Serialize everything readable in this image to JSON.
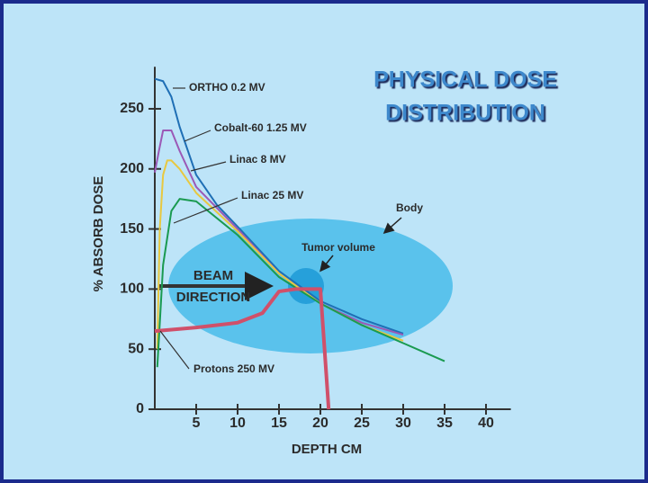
{
  "chart_data": {
    "type": "line",
    "title": [
      "PHYSICAL DOSE",
      "DISTRIBUTION"
    ],
    "x_label": "DEPTH CM",
    "y_label": "% ABSORB DOSE",
    "xlim": [
      0,
      43
    ],
    "ylim": [
      0,
      285
    ],
    "xticks": [
      5,
      10,
      15,
      20,
      25,
      30,
      35,
      40
    ],
    "yticks": [
      0,
      50,
      100,
      150,
      200,
      250
    ],
    "series": [
      {
        "name": "ORTHO  0.2 MV",
        "color": "#1f6fb5",
        "x": [
          0,
          1,
          2,
          3,
          5,
          7.5,
          10,
          15,
          20,
          25,
          30
        ],
        "values": [
          275,
          273,
          260,
          235,
          195,
          170,
          152,
          115,
          90,
          75,
          63
        ]
      },
      {
        "name": "Cobalt-60  1.25 MV",
        "color": "#9b59b6",
        "x": [
          0,
          0.5,
          1,
          2,
          3,
          5,
          10,
          15,
          20,
          25,
          30
        ],
        "values": [
          197,
          215,
          232,
          232,
          215,
          185,
          150,
          113,
          88,
          72,
          62
        ]
      },
      {
        "name": "Linac  8 MV",
        "color": "#e8c840",
        "x": [
          0.3,
          0.6,
          1,
          1.5,
          2,
          3,
          5,
          10,
          15,
          20,
          25,
          30
        ],
        "values": [
          50,
          150,
          195,
          207,
          207,
          200,
          180,
          148,
          113,
          88,
          70,
          57
        ]
      },
      {
        "name": "Linac  25 MV",
        "color": "#1a9a50",
        "x": [
          0.3,
          1,
          2,
          3,
          5,
          10,
          15,
          20,
          25,
          30,
          35
        ],
        "values": [
          35,
          120,
          165,
          175,
          173,
          145,
          110,
          88,
          70,
          55,
          40
        ]
      },
      {
        "name": "Protons  250 MV",
        "color": "#d0506a",
        "x": [
          0,
          5,
          10,
          13,
          15,
          17,
          20,
          20.5,
          21
        ],
        "values": [
          65,
          68,
          72,
          80,
          98,
          100,
          100,
          50,
          0
        ]
      }
    ],
    "annotations": [
      "Body",
      "Tumor volume",
      "BEAM",
      "DIRECTION"
    ]
  }
}
